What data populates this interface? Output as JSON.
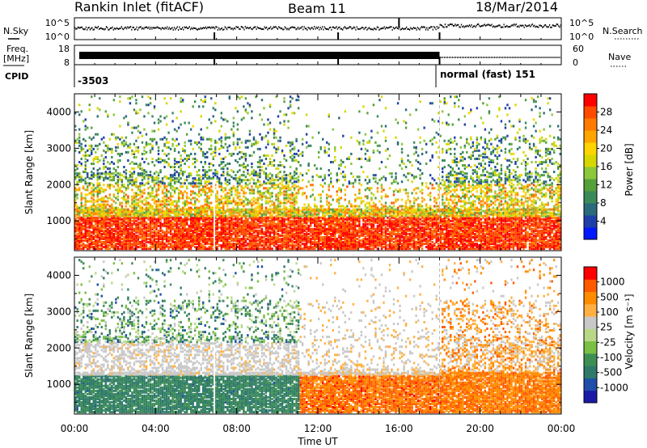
{
  "header": {
    "station": "Rankin Inlet (fitACF)",
    "beam": "Beam 11",
    "date": "18/Mar/2014"
  },
  "side_labels": {
    "nsky": "N.Sky",
    "nsky_top": "10^5",
    "nsky_bottom": "10^0",
    "freq_line1": "Freq.",
    "freq_line2": "[MHz]",
    "freq_top": "18",
    "freq_bottom": "8",
    "nsearch": "N.Search",
    "nsearch_top": "10^5",
    "nsearch_bottom": "10^0",
    "nave": "Nave",
    "nave_top": "60",
    "nave_bottom": "0",
    "cpid": "CPID",
    "cpid_value_1": "-3503",
    "cpid_value_2": "normal (fast) 151"
  },
  "chart_data": [
    {
      "type": "heatmap",
      "title": "",
      "xlabel": "",
      "ylabel": "Slant Range [km]",
      "xlim_hours": [
        0,
        24
      ],
      "ylim": [
        180,
        4500
      ],
      "yticks": [
        "1000",
        "2000",
        "3000",
        "4000"
      ],
      "colorbar": {
        "label": "Power [dB]",
        "ticks": [
          "4",
          "8",
          "12",
          "16",
          "20",
          "24",
          "28"
        ],
        "colors": [
          "#0019ff",
          "#1f3fa8",
          "#2a6a7a",
          "#3b8a5a",
          "#55a03a",
          "#8cc83c",
          "#d7d700",
          "#ffd400",
          "#ffa500",
          "#ff7a00",
          "#ff4a00",
          "#ff0000"
        ]
      }
    },
    {
      "type": "heatmap",
      "title": "",
      "xlabel": "Time UT",
      "ylabel": "Slant Range [km]",
      "xlim_hours": [
        0,
        24
      ],
      "ylim": [
        180,
        4500
      ],
      "xticks": [
        "00:00",
        "04:00",
        "08:00",
        "12:00",
        "16:00",
        "20:00",
        "00:00"
      ],
      "yticks": [
        "1000",
        "2000",
        "3000",
        "4000"
      ],
      "colorbar": {
        "label": "Velocity [m s⁻¹]",
        "ticks": [
          "1000",
          "500",
          "100",
          "25",
          "-25",
          "-100",
          "-500",
          "-1000"
        ],
        "colors": [
          "#1a1aa6",
          "#1f4fa8",
          "#2f7a6a",
          "#3f8f55",
          "#7bbf45",
          "#b8d888",
          "#c8c8c8",
          "#ffb040",
          "#ff8c00",
          "#ff5a00",
          "#ff0000"
        ]
      }
    }
  ]
}
